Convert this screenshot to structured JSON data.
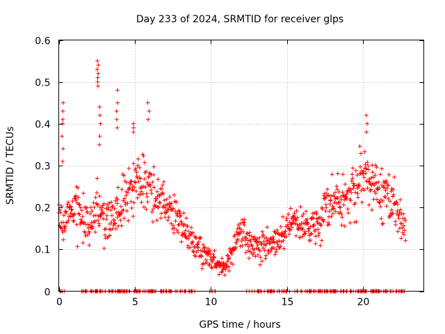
{
  "chart_data": {
    "type": "scatter",
    "title": "Day 233 of 2024, SRMTID for receiver glps",
    "xlabel": "GPS time / hours",
    "ylabel": "SRMTID / TECUs",
    "xlim": [
      0,
      24
    ],
    "ylim": [
      0,
      0.6
    ],
    "xticks": [
      0,
      5,
      10,
      15,
      20
    ],
    "xtick_labels": [
      "0",
      "5",
      "10",
      "15",
      "20"
    ],
    "yticks": [
      0,
      0.1,
      0.2,
      0.3,
      0.4,
      0.5,
      0.6
    ],
    "ytick_labels": [
      "0",
      "0.1",
      "0.2",
      "0.3",
      "0.4",
      "0.5",
      "0.6"
    ],
    "grid": true,
    "marker": "plus",
    "color": "#ff0000",
    "series": [
      {
        "name": "SRMTID",
        "profile": [
          [
            0.0,
            0.2
          ],
          [
            0.3,
            0.16
          ],
          [
            0.7,
            0.19
          ],
          [
            1.0,
            0.2
          ],
          [
            1.5,
            0.19
          ],
          [
            2.0,
            0.16
          ],
          [
            2.5,
            0.2
          ],
          [
            3.0,
            0.17
          ],
          [
            3.5,
            0.18
          ],
          [
            4.0,
            0.2
          ],
          [
            4.5,
            0.22
          ],
          [
            5.0,
            0.26
          ],
          [
            5.5,
            0.28
          ],
          [
            6.0,
            0.26
          ],
          [
            6.5,
            0.22
          ],
          [
            7.0,
            0.2
          ],
          [
            7.5,
            0.18
          ],
          [
            8.0,
            0.17
          ],
          [
            8.5,
            0.14
          ],
          [
            9.0,
            0.11
          ],
          [
            9.5,
            0.09
          ],
          [
            10.0,
            0.08
          ],
          [
            10.5,
            0.06
          ],
          [
            11.0,
            0.06
          ],
          [
            11.5,
            0.1
          ],
          [
            12.0,
            0.15
          ],
          [
            12.5,
            0.12
          ],
          [
            13.0,
            0.1
          ],
          [
            13.5,
            0.11
          ],
          [
            14.0,
            0.11
          ],
          [
            14.5,
            0.12
          ],
          [
            15.0,
            0.15
          ],
          [
            15.5,
            0.18
          ],
          [
            16.0,
            0.16
          ],
          [
            16.5,
            0.16
          ],
          [
            17.0,
            0.16
          ],
          [
            17.5,
            0.19
          ],
          [
            18.0,
            0.21
          ],
          [
            18.5,
            0.22
          ],
          [
            19.0,
            0.22
          ],
          [
            19.5,
            0.24
          ],
          [
            20.0,
            0.27
          ],
          [
            20.5,
            0.25
          ],
          [
            21.0,
            0.24
          ],
          [
            21.5,
            0.23
          ],
          [
            22.0,
            0.21
          ],
          [
            22.5,
            0.17
          ],
          [
            22.7,
            0.16
          ]
        ],
        "spread": [
          [
            0.0,
            0.05
          ],
          [
            2.0,
            0.06
          ],
          [
            3.0,
            0.05
          ],
          [
            5.0,
            0.07
          ],
          [
            6.5,
            0.06
          ],
          [
            8.5,
            0.04
          ],
          [
            10.5,
            0.02
          ],
          [
            12.0,
            0.04
          ],
          [
            14.0,
            0.03
          ],
          [
            16.0,
            0.04
          ],
          [
            18.0,
            0.06
          ],
          [
            20.0,
            0.07
          ],
          [
            22.0,
            0.06
          ],
          [
            22.7,
            0.04
          ]
        ],
        "spikes": [
          {
            "x": 0.25,
            "y": [
              0.45,
              0.43,
              0.41,
              0.4,
              0.37,
              0.34,
              0.31
            ]
          },
          {
            "x": 2.55,
            "y": [
              0.55,
              0.54,
              0.53,
              0.52,
              0.51,
              0.5,
              0.49
            ]
          },
          {
            "x": 2.7,
            "y": [
              0.44,
              0.42,
              0.4,
              0.37,
              0.35
            ]
          },
          {
            "x": 3.85,
            "y": [
              0.48,
              0.45,
              0.43,
              0.41,
              0.39
            ]
          },
          {
            "x": 5.9,
            "y": [
              0.45,
              0.43,
              0.41
            ]
          },
          {
            "x": 4.9,
            "y": [
              0.4,
              0.39,
              0.38
            ]
          },
          {
            "x": 20.25,
            "y": [
              0.42,
              0.4,
              0.38
            ]
          }
        ],
        "zero_clusters": [
          [
            0.1,
            0.4
          ],
          [
            1.4,
            9.1
          ],
          [
            9.9,
            10.3
          ],
          [
            12.3,
            22.8
          ]
        ],
        "x_range": [
          0.0,
          22.8
        ],
        "n_points": 960
      }
    ]
  }
}
